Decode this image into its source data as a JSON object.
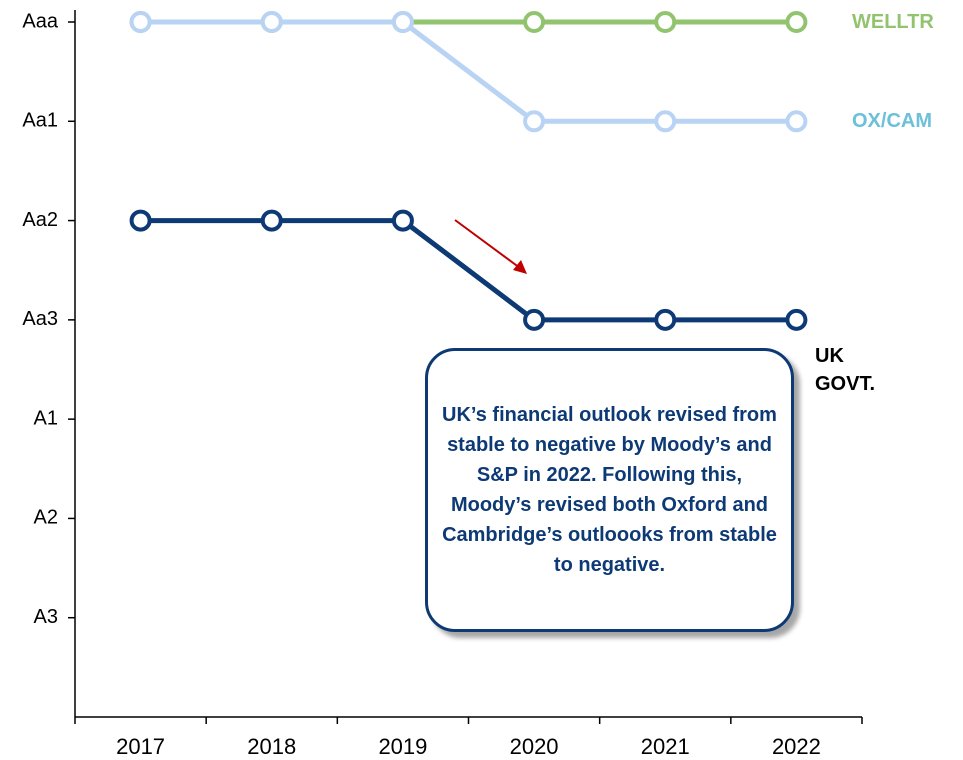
{
  "chart_data": {
    "type": "line",
    "categories": [
      "2017",
      "2018",
      "2019",
      "2020",
      "2021",
      "2022"
    ],
    "series": [
      {
        "name": "WELLTR",
        "color": "#92c46f",
        "values": [
          1,
          1,
          1,
          1,
          1,
          1
        ]
      },
      {
        "name": "OX/CAM",
        "color": "#b9d3f4",
        "label_color": "#6cc0d8",
        "values": [
          1,
          1,
          1,
          2,
          2,
          2
        ]
      },
      {
        "name": "UK GOVT.",
        "color": "#0d3a75",
        "label_color": "#000000",
        "values": [
          3,
          3,
          3,
          4,
          4,
          4
        ]
      }
    ],
    "ylim": [
      8,
      1
    ],
    "yticks": [
      {
        "value": 1,
        "label": "Aaa"
      },
      {
        "value": 2,
        "label": "Aa1"
      },
      {
        "value": 3,
        "label": "Aa2"
      },
      {
        "value": 4,
        "label": "Aa3"
      },
      {
        "value": 5,
        "label": "A1"
      },
      {
        "value": 6,
        "label": "A2"
      },
      {
        "value": 7,
        "label": "A3"
      }
    ],
    "annotation": "UK’s financial outlook revised from stable to negative by Moody’s and S&P in 2022. Following this, Moody’s revised both Oxford and Cambridge’s outloooks from stable to negative."
  }
}
